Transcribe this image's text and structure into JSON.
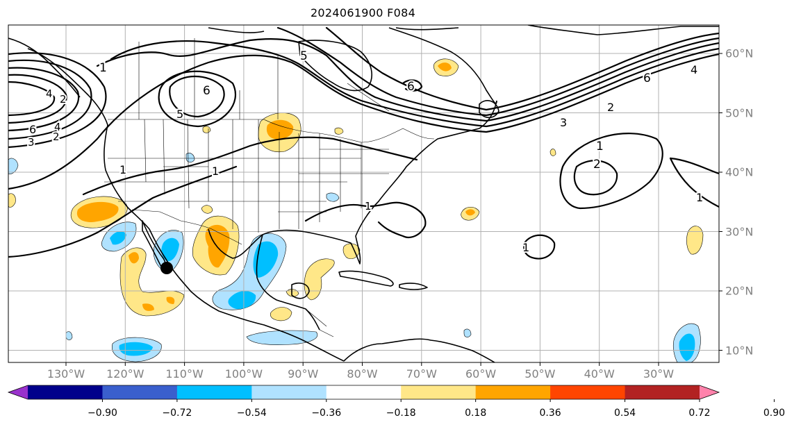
{
  "title": "2024061900 F084",
  "lon_labels": [
    "130°W",
    "120°W",
    "110°W",
    "100°W",
    "90°W",
    "80°W",
    "70°W",
    "60°W",
    "50°W",
    "40°W",
    "30°W"
  ],
  "lat_labels": [
    "60°N",
    "50°N",
    "40°N",
    "30°N",
    "20°N",
    "10°N"
  ],
  "colorbar": {
    "colors": [
      "#9932cc",
      "#00008b",
      "#3a5fcd",
      "#00bfff",
      "#b0e2ff",
      "#ffffff",
      "#ffe788",
      "#ffa500",
      "#ff4500",
      "#b22222",
      "#ff82ab"
    ],
    "tick_labels": [
      "−0.90",
      "−0.72",
      "−0.54",
      "−0.36",
      "−0.18",
      "0.18",
      "0.36",
      "0.54",
      "0.72",
      "0.90"
    ]
  },
  "contour_labels": [
    "1",
    "2",
    "3",
    "4",
    "5",
    "6"
  ],
  "map": {
    "land_color": "#ffffff",
    "coast_color": "#000000",
    "grid_color": "#b0b0b0",
    "marker": "black-dot"
  }
}
